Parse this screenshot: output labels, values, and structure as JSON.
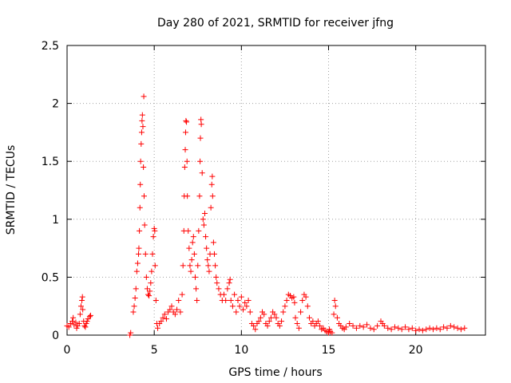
{
  "chart_data": {
    "type": "scatter",
    "title": "Day 280 of 2021, SRMTID for receiver jfng",
    "xlabel": "GPS time / hours",
    "ylabel": "SRMTID / TECUs",
    "xlim": [
      0,
      24
    ],
    "ylim": [
      0,
      2.5
    ],
    "xticks": [
      0,
      5,
      10,
      15,
      20
    ],
    "xtick_labels": [
      "0",
      "5",
      "10",
      "15",
      "20"
    ],
    "yticks": [
      0,
      0.5,
      1,
      1.5,
      2,
      2.5
    ],
    "ytick_labels": [
      "0",
      "0.5",
      "1",
      "1.5",
      "2",
      "2.5"
    ],
    "grid": true,
    "marker": "+",
    "color": "#ff0000",
    "series": [
      {
        "name": "SRMTID",
        "points": [
          [
            0.0,
            0.08
          ],
          [
            0.1,
            0.07
          ],
          [
            0.2,
            0.1
          ],
          [
            0.3,
            0.12
          ],
          [
            0.35,
            0.15
          ],
          [
            0.4,
            0.09
          ],
          [
            0.5,
            0.11
          ],
          [
            0.55,
            0.06
          ],
          [
            0.6,
            0.08
          ],
          [
            0.7,
            0.1
          ],
          [
            0.75,
            0.18
          ],
          [
            0.8,
            0.25
          ],
          [
            0.85,
            0.3
          ],
          [
            0.88,
            0.33
          ],
          [
            0.9,
            0.22
          ],
          [
            0.95,
            0.12
          ],
          [
            1.0,
            0.08
          ],
          [
            1.05,
            0.07
          ],
          [
            1.1,
            0.1
          ],
          [
            1.15,
            0.12
          ],
          [
            1.2,
            0.14
          ],
          [
            1.3,
            0.16
          ],
          [
            1.35,
            0.17
          ],
          [
            3.6,
            0.0
          ],
          [
            3.65,
            0.02
          ],
          [
            3.8,
            0.2
          ],
          [
            3.85,
            0.25
          ],
          [
            3.9,
            0.32
          ],
          [
            3.95,
            0.4
          ],
          [
            4.0,
            0.55
          ],
          [
            4.05,
            0.62
          ],
          [
            4.1,
            0.7
          ],
          [
            4.12,
            0.75
          ],
          [
            4.15,
            0.9
          ],
          [
            4.18,
            1.1
          ],
          [
            4.2,
            1.3
          ],
          [
            4.22,
            1.5
          ],
          [
            4.25,
            1.65
          ],
          [
            4.28,
            1.75
          ],
          [
            4.3,
            1.85
          ],
          [
            4.32,
            1.9
          ],
          [
            4.35,
            1.8
          ],
          [
            4.38,
            1.45
          ],
          [
            4.4,
            2.06
          ],
          [
            4.42,
            1.2
          ],
          [
            4.45,
            0.95
          ],
          [
            4.5,
            0.7
          ],
          [
            4.55,
            0.5
          ],
          [
            4.6,
            0.4
          ],
          [
            4.65,
            0.35
          ],
          [
            4.7,
            0.34
          ],
          [
            4.75,
            0.38
          ],
          [
            4.8,
            0.45
          ],
          [
            4.85,
            0.55
          ],
          [
            4.9,
            0.7
          ],
          [
            4.95,
            0.85
          ],
          [
            5.0,
            0.92
          ],
          [
            5.03,
            0.9
          ],
          [
            5.05,
            0.6
          ],
          [
            5.1,
            0.3
          ],
          [
            5.15,
            0.1
          ],
          [
            5.2,
            0.06
          ],
          [
            5.3,
            0.1
          ],
          [
            5.4,
            0.12
          ],
          [
            5.5,
            0.15
          ],
          [
            5.6,
            0.18
          ],
          [
            5.7,
            0.14
          ],
          [
            5.8,
            0.2
          ],
          [
            5.9,
            0.22
          ],
          [
            6.0,
            0.25
          ],
          [
            6.1,
            0.2
          ],
          [
            6.2,
            0.18
          ],
          [
            6.3,
            0.22
          ],
          [
            6.4,
            0.3
          ],
          [
            6.5,
            0.2
          ],
          [
            6.6,
            0.35
          ],
          [
            6.65,
            0.6
          ],
          [
            6.7,
            0.9
          ],
          [
            6.72,
            1.2
          ],
          [
            6.75,
            1.45
          ],
          [
            6.78,
            1.6
          ],
          [
            6.8,
            1.75
          ],
          [
            6.82,
            1.85
          ],
          [
            6.85,
            1.84
          ],
          [
            6.88,
            1.5
          ],
          [
            6.9,
            1.2
          ],
          [
            6.95,
            0.9
          ],
          [
            7.0,
            0.75
          ],
          [
            7.05,
            0.6
          ],
          [
            7.1,
            0.55
          ],
          [
            7.15,
            0.65
          ],
          [
            7.2,
            0.8
          ],
          [
            7.25,
            0.85
          ],
          [
            7.3,
            0.7
          ],
          [
            7.35,
            0.5
          ],
          [
            7.4,
            0.4
          ],
          [
            7.45,
            0.3
          ],
          [
            7.5,
            0.6
          ],
          [
            7.55,
            0.9
          ],
          [
            7.6,
            1.2
          ],
          [
            7.63,
            1.5
          ],
          [
            7.65,
            1.7
          ],
          [
            7.68,
            1.86
          ],
          [
            7.7,
            1.82
          ],
          [
            7.75,
            1.4
          ],
          [
            7.8,
            1.0
          ],
          [
            7.85,
            0.95
          ],
          [
            7.9,
            1.05
          ],
          [
            7.95,
            0.85
          ],
          [
            8.0,
            0.75
          ],
          [
            8.05,
            0.65
          ],
          [
            8.1,
            0.6
          ],
          [
            8.15,
            0.55
          ],
          [
            8.2,
            0.7
          ],
          [
            8.25,
            1.1
          ],
          [
            8.3,
            1.3
          ],
          [
            8.33,
            1.37
          ],
          [
            8.35,
            1.2
          ],
          [
            8.4,
            0.8
          ],
          [
            8.45,
            0.7
          ],
          [
            8.5,
            0.6
          ],
          [
            8.55,
            0.5
          ],
          [
            8.6,
            0.45
          ],
          [
            8.7,
            0.4
          ],
          [
            8.8,
            0.35
          ],
          [
            8.9,
            0.3
          ],
          [
            9.0,
            0.35
          ],
          [
            9.1,
            0.3
          ],
          [
            9.2,
            0.4
          ],
          [
            9.3,
            0.45
          ],
          [
            9.35,
            0.48
          ],
          [
            9.4,
            0.3
          ],
          [
            9.5,
            0.25
          ],
          [
            9.6,
            0.35
          ],
          [
            9.7,
            0.2
          ],
          [
            9.8,
            0.3
          ],
          [
            9.9,
            0.25
          ],
          [
            10.0,
            0.33
          ],
          [
            10.1,
            0.22
          ],
          [
            10.2,
            0.28
          ],
          [
            10.3,
            0.25
          ],
          [
            10.4,
            0.3
          ],
          [
            10.5,
            0.2
          ],
          [
            10.6,
            0.1
          ],
          [
            10.7,
            0.08
          ],
          [
            10.8,
            0.05
          ],
          [
            10.9,
            0.1
          ],
          [
            11.0,
            0.12
          ],
          [
            11.1,
            0.15
          ],
          [
            11.2,
            0.2
          ],
          [
            11.3,
            0.18
          ],
          [
            11.4,
            0.1
          ],
          [
            11.5,
            0.08
          ],
          [
            11.6,
            0.12
          ],
          [
            11.7,
            0.15
          ],
          [
            11.8,
            0.2
          ],
          [
            11.9,
            0.18
          ],
          [
            12.0,
            0.15
          ],
          [
            12.1,
            0.1
          ],
          [
            12.2,
            0.08
          ],
          [
            12.3,
            0.12
          ],
          [
            12.4,
            0.2
          ],
          [
            12.5,
            0.25
          ],
          [
            12.6,
            0.3
          ],
          [
            12.7,
            0.35
          ],
          [
            12.8,
            0.34
          ],
          [
            12.9,
            0.32
          ],
          [
            13.0,
            0.33
          ],
          [
            13.05,
            0.28
          ],
          [
            13.1,
            0.15
          ],
          [
            13.2,
            0.1
          ],
          [
            13.3,
            0.06
          ],
          [
            13.4,
            0.2
          ],
          [
            13.5,
            0.3
          ],
          [
            13.6,
            0.35
          ],
          [
            13.7,
            0.33
          ],
          [
            13.8,
            0.25
          ],
          [
            13.9,
            0.15
          ],
          [
            14.0,
            0.1
          ],
          [
            14.1,
            0.12
          ],
          [
            14.2,
            0.08
          ],
          [
            14.3,
            0.1
          ],
          [
            14.4,
            0.12
          ],
          [
            14.5,
            0.08
          ],
          [
            14.6,
            0.05
          ],
          [
            14.7,
            0.06
          ],
          [
            14.8,
            0.04
          ],
          [
            14.9,
            0.03
          ],
          [
            15.0,
            0.02
          ],
          [
            15.05,
            0.05
          ],
          [
            15.1,
            0.03
          ],
          [
            15.2,
            0.02
          ],
          [
            15.3,
            0.18
          ],
          [
            15.35,
            0.3
          ],
          [
            15.4,
            0.25
          ],
          [
            15.5,
            0.15
          ],
          [
            15.6,
            0.1
          ],
          [
            15.7,
            0.08
          ],
          [
            15.8,
            0.06
          ],
          [
            15.9,
            0.05
          ],
          [
            16.0,
            0.07
          ],
          [
            16.2,
            0.1
          ],
          [
            16.4,
            0.08
          ],
          [
            16.6,
            0.06
          ],
          [
            16.8,
            0.08
          ],
          [
            17.0,
            0.07
          ],
          [
            17.2,
            0.09
          ],
          [
            17.4,
            0.06
          ],
          [
            17.6,
            0.05
          ],
          [
            17.8,
            0.08
          ],
          [
            18.0,
            0.12
          ],
          [
            18.1,
            0.1
          ],
          [
            18.2,
            0.08
          ],
          [
            18.4,
            0.06
          ],
          [
            18.6,
            0.05
          ],
          [
            18.8,
            0.07
          ],
          [
            19.0,
            0.06
          ],
          [
            19.2,
            0.05
          ],
          [
            19.4,
            0.07
          ],
          [
            19.6,
            0.05
          ],
          [
            19.8,
            0.06
          ],
          [
            20.0,
            0.04
          ],
          [
            20.2,
            0.05
          ],
          [
            20.4,
            0.04
          ],
          [
            20.6,
            0.05
          ],
          [
            20.8,
            0.06
          ],
          [
            21.0,
            0.05
          ],
          [
            21.2,
            0.06
          ],
          [
            21.4,
            0.05
          ],
          [
            21.6,
            0.07
          ],
          [
            21.8,
            0.06
          ],
          [
            22.0,
            0.08
          ],
          [
            22.2,
            0.07
          ],
          [
            22.4,
            0.06
          ],
          [
            22.6,
            0.05
          ],
          [
            22.8,
            0.06
          ]
        ]
      }
    ]
  }
}
